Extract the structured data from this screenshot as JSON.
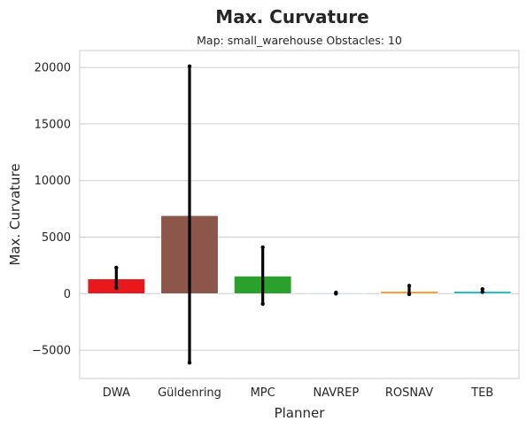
{
  "chart_data": {
    "type": "bar",
    "title": "Max. Curvature",
    "subtitle": "Map: small_warehouse Obstacles: 10",
    "xlabel": "Planner",
    "ylabel": "Max. Curvature",
    "ylim": [
      -7500,
      21500
    ],
    "yticks": [
      -5000,
      0,
      5000,
      10000,
      15000,
      20000
    ],
    "ytick_labels": [
      "−5000",
      "0",
      "5000",
      "10000",
      "15000",
      "20000"
    ],
    "grid": "horizontal",
    "categories": [
      "DWA",
      "Güldenring",
      "MPC",
      "NAVREP",
      "ROSNAV",
      "TEB"
    ],
    "values": [
      1300,
      6900,
      1550,
      0,
      200,
      200
    ],
    "error_low": [
      500,
      -6100,
      -900,
      0,
      -50,
      150
    ],
    "error_high": [
      2300,
      20100,
      4100,
      100,
      700,
      400
    ],
    "colors": [
      "#e8191c",
      "#8c564b",
      "#2ca02c",
      "#1f77b4",
      "#ff9a2e",
      "#17becf"
    ]
  }
}
